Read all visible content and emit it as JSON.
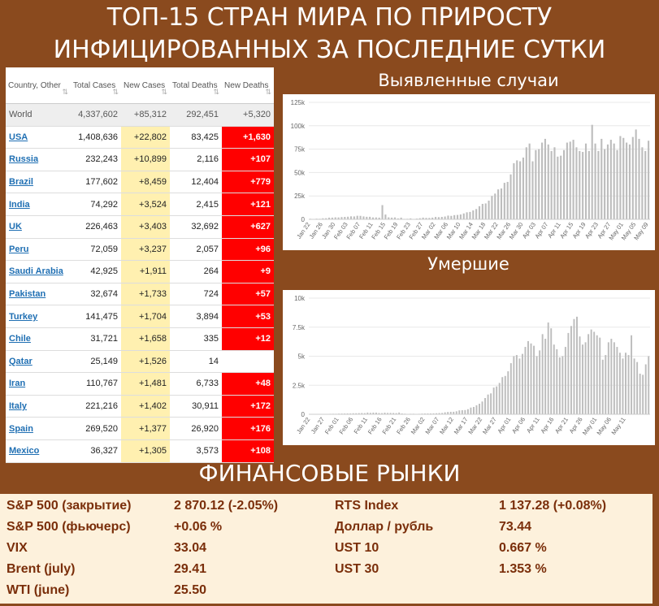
{
  "title": {
    "line1": "ТОП-15 СТРАН МИРА ПО ПРИРОСТУ",
    "line2": "ИНФИЦИРОВАННЫХ ЗА ПОСЛЕДНИЕ СУТКИ"
  },
  "table": {
    "headers": {
      "country": "Country, Other",
      "total_cases": "Total Cases",
      "new_cases": "New Cases",
      "total_deaths": "Total Deaths",
      "new_deaths": "New Deaths"
    },
    "sort_icon": "sort-arrows",
    "rows": [
      {
        "country": "World",
        "total_cases": "4,337,602",
        "new_cases": "+85,312",
        "total_deaths": "292,451",
        "new_deaths": "+5,320"
      },
      {
        "country": "USA",
        "total_cases": "1,408,636",
        "new_cases": "+22,802",
        "total_deaths": "83,425",
        "new_deaths": "+1,630"
      },
      {
        "country": "Russia",
        "total_cases": "232,243",
        "new_cases": "+10,899",
        "total_deaths": "2,116",
        "new_deaths": "+107"
      },
      {
        "country": "Brazil",
        "total_cases": "177,602",
        "new_cases": "+8,459",
        "total_deaths": "12,404",
        "new_deaths": "+779"
      },
      {
        "country": "India",
        "total_cases": "74,292",
        "new_cases": "+3,524",
        "total_deaths": "2,415",
        "new_deaths": "+121"
      },
      {
        "country": "UK",
        "total_cases": "226,463",
        "new_cases": "+3,403",
        "total_deaths": "32,692",
        "new_deaths": "+627"
      },
      {
        "country": "Peru",
        "total_cases": "72,059",
        "new_cases": "+3,237",
        "total_deaths": "2,057",
        "new_deaths": "+96"
      },
      {
        "country": "Saudi Arabia",
        "total_cases": "42,925",
        "new_cases": "+1,911",
        "total_deaths": "264",
        "new_deaths": "+9"
      },
      {
        "country": "Pakistan",
        "total_cases": "32,674",
        "new_cases": "+1,733",
        "total_deaths": "724",
        "new_deaths": "+57"
      },
      {
        "country": "Turkey",
        "total_cases": "141,475",
        "new_cases": "+1,704",
        "total_deaths": "3,894",
        "new_deaths": "+53"
      },
      {
        "country": "Chile",
        "total_cases": "31,721",
        "new_cases": "+1,658",
        "total_deaths": "335",
        "new_deaths": "+12"
      },
      {
        "country": "Qatar",
        "total_cases": "25,149",
        "new_cases": "+1,526",
        "total_deaths": "14",
        "new_deaths": ""
      },
      {
        "country": "Iran",
        "total_cases": "110,767",
        "new_cases": "+1,481",
        "total_deaths": "6,733",
        "new_deaths": "+48"
      },
      {
        "country": "Italy",
        "total_cases": "221,216",
        "new_cases": "+1,402",
        "total_deaths": "30,911",
        "new_deaths": "+172"
      },
      {
        "country": "Spain",
        "total_cases": "269,520",
        "new_cases": "+1,377",
        "total_deaths": "26,920",
        "new_deaths": "+176"
      },
      {
        "country": "Mexico",
        "total_cases": "36,327",
        "new_cases": "+1,305",
        "total_deaths": "3,573",
        "new_deaths": "+108"
      }
    ]
  },
  "colors": {
    "background": "#8a4a1e",
    "new_cases_bg": "#fff0b0",
    "new_deaths_bg": "#ff0000",
    "link": "#1f6fb3",
    "bar": "#bdbdbd",
    "market_text": "#7a2e0a"
  },
  "chart_data": [
    {
      "type": "bar",
      "title": "Выявленные случаи",
      "ylim": [
        0,
        125000
      ],
      "yticks": [
        "0",
        "25k",
        "50k",
        "75k",
        "100k",
        "125k"
      ],
      "ytick_values": [
        0,
        25000,
        50000,
        75000,
        100000,
        125000
      ],
      "xtick_labels": [
        "Jan 22",
        "Jan 26",
        "Jan 30",
        "Feb 03",
        "Feb 07",
        "Feb 11",
        "Feb 15",
        "Feb 19",
        "Feb 23",
        "Feb 27",
        "Mar 02",
        "Mar 06",
        "Mar 10",
        "Mar 14",
        "Mar 18",
        "Mar 22",
        "Mar 26",
        "Mar 30",
        "Apr 03",
        "Apr 07",
        "Apr 11",
        "Apr 15",
        "Apr 19",
        "Apr 23",
        "Apr 27",
        "May 01",
        "May 05",
        "May 09"
      ],
      "xtick_step": 4,
      "grid": true,
      "values": [
        600,
        100,
        700,
        600,
        1100,
        1200,
        1800,
        1800,
        2100,
        2000,
        2400,
        2600,
        2800,
        3200,
        3100,
        3800,
        3700,
        3100,
        2700,
        2700,
        2000,
        2000,
        1800,
        15200,
        5100,
        2100,
        1800,
        2000,
        1000,
        1800,
        500,
        600,
        1000,
        400,
        800,
        1200,
        1800,
        1500,
        1500,
        1800,
        2500,
        2300,
        2600,
        3000,
        4000,
        3700,
        4500,
        4700,
        5200,
        6300,
        7500,
        7900,
        9500,
        11000,
        14000,
        16500,
        17000,
        20000,
        25000,
        27500,
        32000,
        33000,
        39000,
        40000,
        48000,
        60000,
        63000,
        62000,
        66000,
        77000,
        81000,
        62000,
        74000,
        75000,
        82000,
        86000,
        80000,
        73000,
        77000,
        67000,
        68000,
        74000,
        82000,
        83000,
        85000,
        77000,
        73000,
        72000,
        81000,
        73000,
        101000,
        81000,
        73000,
        86000,
        75000,
        80000,
        85000,
        81000,
        74000,
        89000,
        87000,
        82000,
        80000,
        88000,
        96000,
        86000,
        77000,
        73000,
        84000
      ],
      "xlabel": "",
      "ylabel": ""
    },
    {
      "type": "bar",
      "title": "Умершие",
      "ylim": [
        0,
        10000
      ],
      "yticks": [
        "0",
        "2.5k",
        "5k",
        "7.5k",
        "10k"
      ],
      "ytick_values": [
        0,
        2500,
        5000,
        7500,
        10000
      ],
      "xtick_labels": [
        "Jan 22",
        "Jan 27",
        "Feb 01",
        "Feb 06",
        "Feb 11",
        "Feb 16",
        "Feb 21",
        "Feb 26",
        "Mar 02",
        "Mar 07",
        "Mar 12",
        "Mar 17",
        "Mar 22",
        "Mar 27",
        "Apr 01",
        "Apr 06",
        "Apr 11",
        "Apr 16",
        "Apr 21",
        "Apr 26",
        "May 01",
        "May 06",
        "May 11"
      ],
      "xtick_step": 5,
      "grid": true,
      "values": [
        17,
        1,
        8,
        16,
        14,
        26,
        26,
        43,
        46,
        45,
        57,
        64,
        65,
        73,
        73,
        86,
        89,
        97,
        108,
        97,
        146,
        121,
        143,
        142,
        105,
        98,
        136,
        114,
        118,
        109,
        97,
        150,
        71,
        52,
        29,
        44,
        47,
        35,
        42,
        60,
        67,
        70,
        70,
        80,
        89,
        105,
        115,
        167,
        196,
        213,
        216,
        258,
        337,
        350,
        363,
        438,
        577,
        632,
        775,
        907,
        1100,
        1400,
        1700,
        1800,
        2300,
        2400,
        2700,
        3200,
        3300,
        3700,
        4400,
        5000,
        5100,
        4800,
        5200,
        5800,
        6300,
        6100,
        5900,
        5000,
        5500,
        6900,
        6500,
        7900,
        7400,
        6000,
        5600,
        4900,
        5000,
        5800,
        7000,
        7600,
        8200,
        8400,
        6700,
        6000,
        6200,
        6900,
        7300,
        7100,
        6800,
        6600,
        4700,
        5100,
        6200,
        6500,
        6200,
        5800,
        5300,
        4800,
        5300,
        5100,
        6800,
        4800,
        4500,
        3500,
        3400,
        4300,
        5000
      ]
    }
  ],
  "panels": {
    "cases_title": "Выявленные случаи",
    "deaths_title": "Умершие"
  },
  "markets": {
    "title": "ФИНАНСОВЫЕ РЫНКИ",
    "left": [
      {
        "label": "S&P 500 (закрытие)",
        "value": "2 870.12 (-2.05%)"
      },
      {
        "label": "S&P 500 (фьючерс)",
        "value": "+0.06 %"
      },
      {
        "label": "VIX",
        "value": "33.04"
      },
      {
        "label": "Brent (july)",
        "value": "29.41"
      },
      {
        "label": "WTI (june)",
        "value": "25.50"
      }
    ],
    "right": [
      {
        "label": "RTS Index",
        "value": "1 137.28 (+0.08%)"
      },
      {
        "label": "Доллар / рубль",
        "value": "73.44"
      },
      {
        "label": "UST 10",
        "value": "0.667 %"
      },
      {
        "label": "UST 30",
        "value": "1.353 %"
      }
    ]
  }
}
